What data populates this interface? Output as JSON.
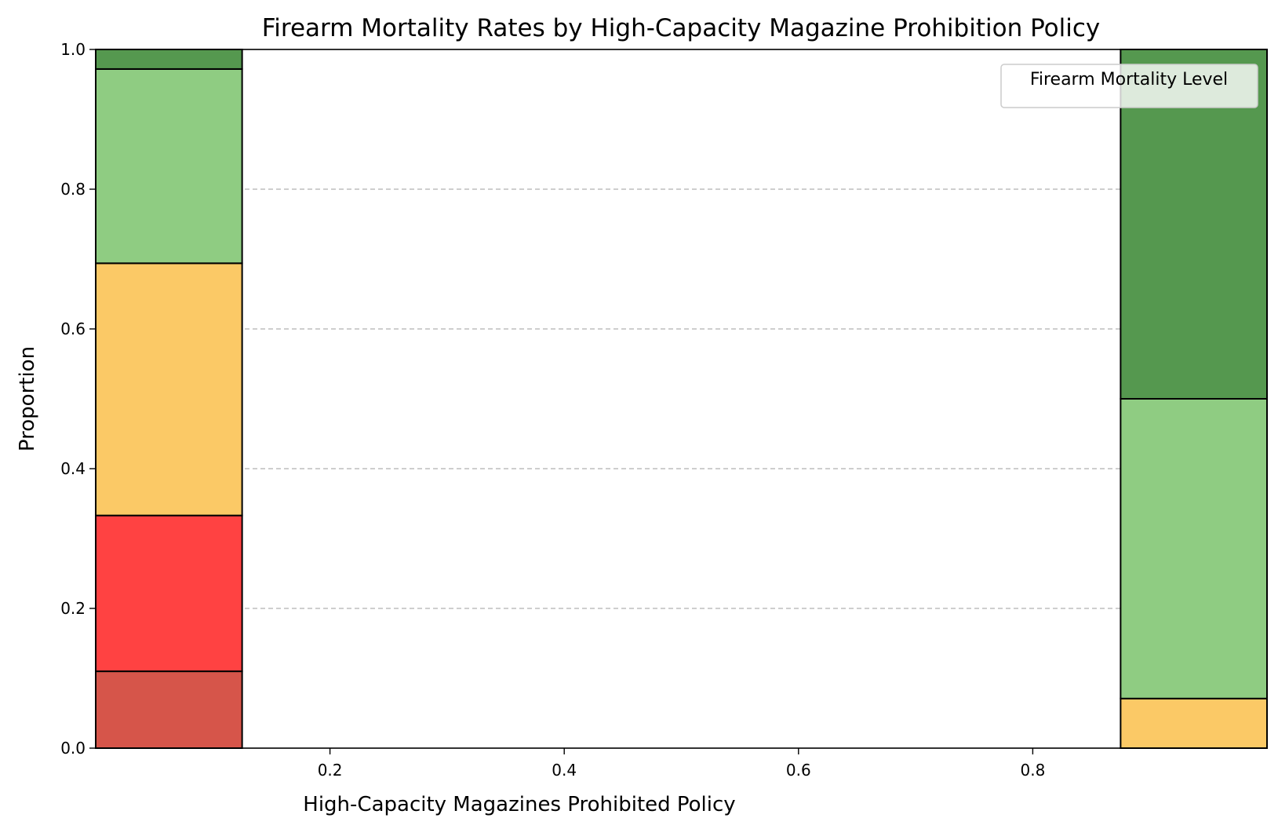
{
  "chart_data": {
    "type": "bar",
    "stacked": true,
    "normalized": true,
    "title": "Firearm Mortality Rates by High-Capacity Magazine Prohibition Policy",
    "xlabel": "High-Capacity Magazines Prohibited Policy",
    "ylabel": "Proportion",
    "xlim": [
      0.0,
      1.0
    ],
    "ylim": [
      0.0,
      1.0
    ],
    "x_ticks": [
      0.2,
      0.4,
      0.6,
      0.8
    ],
    "x_tick_labels": [
      "0.2",
      "0.4",
      "0.6",
      "0.8"
    ],
    "y_ticks": [
      0.0,
      0.2,
      0.4,
      0.6,
      0.8,
      1.0
    ],
    "y_tick_labels": [
      "0.0",
      "0.2",
      "0.4",
      "0.6",
      "0.8",
      "1.0"
    ],
    "grid": "y-dashed",
    "legend": {
      "title": "Firearm Mortality Level",
      "placement": "top-right",
      "entries": []
    },
    "bins": [
      {
        "x_start": 0.0,
        "x_end": 0.125,
        "segments": [
          {
            "from": 0.0,
            "to": 0.11,
            "color": "#d6554a"
          },
          {
            "from": 0.11,
            "to": 0.333,
            "color": "#ff4242"
          },
          {
            "from": 0.333,
            "to": 0.694,
            "color": "#fbc966"
          },
          {
            "from": 0.694,
            "to": 0.972,
            "color": "#8fcc82"
          },
          {
            "from": 0.972,
            "to": 1.0,
            "color": "#55984f"
          }
        ]
      },
      {
        "x_start": 0.875,
        "x_end": 1.0,
        "segments": [
          {
            "from": 0.0,
            "to": 0.071,
            "color": "#fbc966"
          },
          {
            "from": 0.071,
            "to": 0.5,
            "color": "#8fcc82"
          },
          {
            "from": 0.5,
            "to": 1.0,
            "color": "#55984f"
          }
        ]
      }
    ]
  }
}
